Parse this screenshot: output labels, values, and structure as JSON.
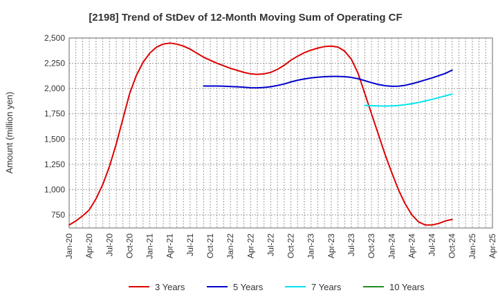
{
  "chart_data": {
    "type": "line",
    "title": "[2198]  Trend of StDev of 12-Month Moving Sum of Operating CF",
    "xlabel": "",
    "ylabel": "Amount (million yen)",
    "ylim": [
      620,
      2500
    ],
    "yticks": [
      750,
      1000,
      1250,
      1500,
      1750,
      2000,
      2250,
      2500
    ],
    "ytick_labels": [
      "750",
      "1,000",
      "1,250",
      "1,500",
      "1,750",
      "2,000",
      "2,250",
      "2,500"
    ],
    "xticks": [
      "Jan-20",
      "Apr-20",
      "Jul-20",
      "Oct-20",
      "Jan-21",
      "Apr-21",
      "Jul-21",
      "Oct-21",
      "Jan-22",
      "Apr-22",
      "Jul-22",
      "Oct-22",
      "Jan-23",
      "Apr-23",
      "Jul-23",
      "Oct-23",
      "Jan-24",
      "Apr-24",
      "Jul-24",
      "Oct-24",
      "Jan-25",
      "Apr-25"
    ],
    "grid": true,
    "legend_position": "bottom",
    "series": [
      {
        "name": "3 Years",
        "color": "#dd0000",
        "points": [
          [
            "Jan-20",
            650
          ],
          [
            "Feb-20",
            690
          ],
          [
            "Mar-20",
            740
          ],
          [
            "Apr-20",
            800
          ],
          [
            "May-20",
            910
          ],
          [
            "Jun-20",
            1050
          ],
          [
            "Jul-20",
            1230
          ],
          [
            "Aug-20",
            1450
          ],
          [
            "Sep-20",
            1700
          ],
          [
            "Oct-20",
            1950
          ],
          [
            "Nov-20",
            2130
          ],
          [
            "Dec-20",
            2260
          ],
          [
            "Jan-21",
            2350
          ],
          [
            "Feb-21",
            2410
          ],
          [
            "Mar-21",
            2440
          ],
          [
            "Apr-21",
            2450
          ],
          [
            "May-21",
            2440
          ],
          [
            "Jun-21",
            2420
          ],
          [
            "Jul-21",
            2390
          ],
          [
            "Aug-21",
            2350
          ],
          [
            "Sep-21",
            2310
          ],
          [
            "Oct-21",
            2280
          ],
          [
            "Nov-21",
            2250
          ],
          [
            "Dec-21",
            2225
          ],
          [
            "Jan-22",
            2200
          ],
          [
            "Feb-22",
            2180
          ],
          [
            "Mar-22",
            2160
          ],
          [
            "Apr-22",
            2145
          ],
          [
            "May-22",
            2140
          ],
          [
            "Jun-22",
            2145
          ],
          [
            "Jul-22",
            2160
          ],
          [
            "Aug-22",
            2190
          ],
          [
            "Sep-22",
            2230
          ],
          [
            "Oct-22",
            2280
          ],
          [
            "Nov-22",
            2320
          ],
          [
            "Dec-22",
            2355
          ],
          [
            "Jan-23",
            2380
          ],
          [
            "Feb-23",
            2400
          ],
          [
            "Mar-23",
            2415
          ],
          [
            "Apr-23",
            2420
          ],
          [
            "May-23",
            2410
          ],
          [
            "Jun-23",
            2370
          ],
          [
            "Jul-23",
            2290
          ],
          [
            "Aug-23",
            2150
          ],
          [
            "Sep-23",
            1950
          ],
          [
            "Oct-23",
            1750
          ],
          [
            "Nov-23",
            1550
          ],
          [
            "Dec-23",
            1350
          ],
          [
            "Jan-24",
            1170
          ],
          [
            "Feb-24",
            1000
          ],
          [
            "Mar-24",
            860
          ],
          [
            "Apr-24",
            750
          ],
          [
            "May-24",
            680
          ],
          [
            "Jun-24",
            650
          ],
          [
            "Jul-24",
            650
          ],
          [
            "Aug-24",
            665
          ],
          [
            "Sep-24",
            690
          ],
          [
            "Oct-24",
            705
          ]
        ]
      },
      {
        "name": "5 Years",
        "color": "#0000cc",
        "points": [
          [
            "Sep-21",
            2025
          ],
          [
            "Oct-21",
            2025
          ],
          [
            "Nov-21",
            2025
          ],
          [
            "Dec-21",
            2023
          ],
          [
            "Jan-22",
            2020
          ],
          [
            "Feb-22",
            2017
          ],
          [
            "Mar-22",
            2013
          ],
          [
            "Apr-22",
            2008
          ],
          [
            "May-22",
            2007
          ],
          [
            "Jun-22",
            2010
          ],
          [
            "Jul-22",
            2018
          ],
          [
            "Aug-22",
            2030
          ],
          [
            "Sep-22",
            2045
          ],
          [
            "Oct-22",
            2065
          ],
          [
            "Nov-22",
            2082
          ],
          [
            "Dec-22",
            2095
          ],
          [
            "Jan-23",
            2105
          ],
          [
            "Feb-23",
            2112
          ],
          [
            "Mar-23",
            2117
          ],
          [
            "Apr-23",
            2120
          ],
          [
            "May-23",
            2120
          ],
          [
            "Jun-23",
            2117
          ],
          [
            "Jul-23",
            2110
          ],
          [
            "Aug-23",
            2097
          ],
          [
            "Sep-23",
            2078
          ],
          [
            "Oct-23",
            2058
          ],
          [
            "Nov-23",
            2040
          ],
          [
            "Dec-23",
            2028
          ],
          [
            "Jan-24",
            2022
          ],
          [
            "Feb-24",
            2023
          ],
          [
            "Mar-24",
            2032
          ],
          [
            "Apr-24",
            2047
          ],
          [
            "May-24",
            2065
          ],
          [
            "Jun-24",
            2085
          ],
          [
            "Jul-24",
            2105
          ],
          [
            "Aug-24",
            2127
          ],
          [
            "Sep-24",
            2150
          ],
          [
            "Oct-24",
            2182
          ]
        ]
      },
      {
        "name": "7 Years",
        "color": "#00e5ee",
        "points": [
          [
            "Sep-23",
            1833
          ],
          [
            "Oct-23",
            1830
          ],
          [
            "Nov-23",
            1828
          ],
          [
            "Dec-23",
            1827
          ],
          [
            "Jan-24",
            1828
          ],
          [
            "Feb-24",
            1832
          ],
          [
            "Mar-24",
            1840
          ],
          [
            "Apr-24",
            1850
          ],
          [
            "May-24",
            1862
          ],
          [
            "Jun-24",
            1877
          ],
          [
            "Jul-24",
            1893
          ],
          [
            "Aug-24",
            1910
          ],
          [
            "Sep-24",
            1928
          ],
          [
            "Oct-24",
            1945
          ]
        ]
      },
      {
        "name": "10 Years",
        "color": "#228b22",
        "points": []
      }
    ]
  }
}
